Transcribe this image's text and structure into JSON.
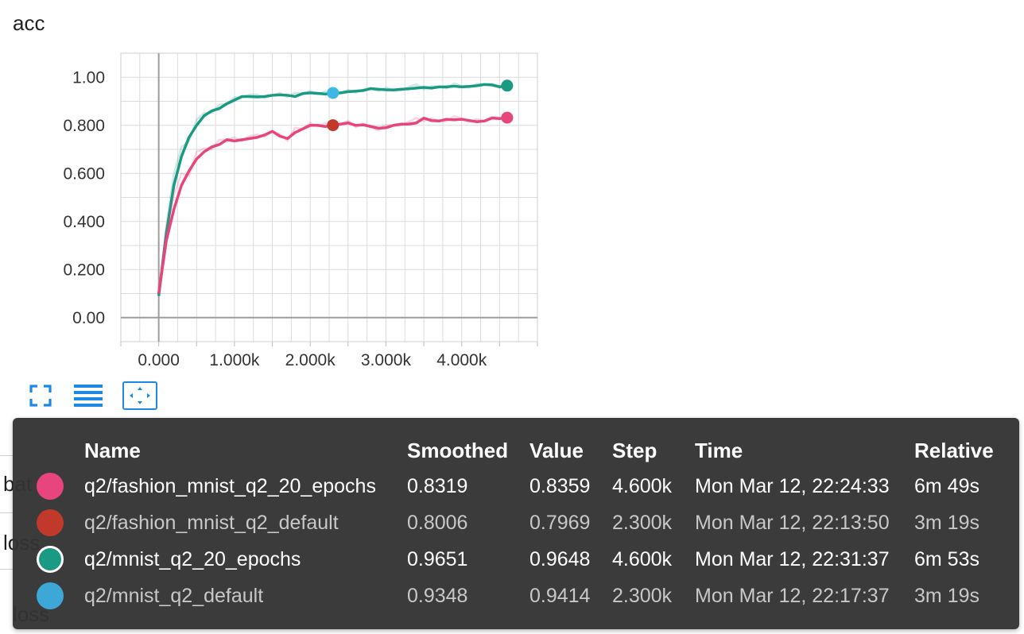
{
  "title": "acc",
  "background_rows": {
    "row1": "bat",
    "row2": "loss",
    "row3": "loss"
  },
  "toolbar": {
    "fullscreen": "fullscreen-icon",
    "list": "list-icon",
    "fit": "fit-domain-icon"
  },
  "chart_data": {
    "type": "line",
    "title": "acc",
    "xlabel": "",
    "ylabel": "",
    "xlim": [
      -500,
      5000
    ],
    "ylim": [
      -0.1,
      1.1
    ],
    "x_ticks": [
      "0.000",
      "1.000k",
      "2.000k",
      "3.000k",
      "4.000k"
    ],
    "y_ticks": [
      "0.00",
      "0.200",
      "0.400",
      "0.600",
      "0.800",
      "1.00"
    ],
    "grid": true,
    "series": [
      {
        "name": "q2/mnist_q2_20_epochs",
        "color": "#1a9a83",
        "x": [
          0,
          100,
          200,
          300,
          400,
          500,
          600,
          700,
          800,
          900,
          1000,
          1100,
          1200,
          1300,
          1400,
          1500,
          1600,
          1700,
          1800,
          1900,
          2000,
          2100,
          2200,
          2300,
          2400,
          2500,
          2600,
          2700,
          2800,
          2900,
          3000,
          3100,
          3200,
          3300,
          3400,
          3500,
          3600,
          3700,
          3800,
          3900,
          4000,
          4100,
          4200,
          4300,
          4400,
          4500,
          4600
        ],
        "values": [
          0.09,
          0.35,
          0.55,
          0.67,
          0.75,
          0.8,
          0.84,
          0.86,
          0.87,
          0.89,
          0.905,
          0.92,
          0.92,
          0.918,
          0.92,
          0.925,
          0.927,
          0.925,
          0.92,
          0.932,
          0.935,
          0.933,
          0.93,
          0.933,
          0.935,
          0.94,
          0.942,
          0.945,
          0.953,
          0.95,
          0.948,
          0.947,
          0.95,
          0.952,
          0.955,
          0.958,
          0.955,
          0.96,
          0.96,
          0.963,
          0.96,
          0.962,
          0.965,
          0.97,
          0.968,
          0.96,
          0.9651
        ],
        "marker_x": 4600,
        "marker_y": 0.9651
      },
      {
        "name": "q2/mnist_q2_default",
        "color": "#3db8e6",
        "marker_x": 2300,
        "marker_y": 0.9348
      },
      {
        "name": "q2/fashion_mnist_q2_20_epochs",
        "color": "#e8447e",
        "x": [
          0,
          100,
          200,
          300,
          400,
          500,
          600,
          700,
          800,
          900,
          1000,
          1100,
          1200,
          1300,
          1400,
          1500,
          1600,
          1700,
          1800,
          1900,
          2000,
          2100,
          2200,
          2300,
          2400,
          2500,
          2600,
          2700,
          2800,
          2900,
          3000,
          3100,
          3200,
          3300,
          3400,
          3500,
          3600,
          3700,
          3800,
          3900,
          4000,
          4100,
          4200,
          4300,
          4400,
          4500,
          4600
        ],
        "values": [
          0.1,
          0.32,
          0.45,
          0.55,
          0.61,
          0.66,
          0.69,
          0.71,
          0.72,
          0.74,
          0.735,
          0.74,
          0.745,
          0.75,
          0.76,
          0.775,
          0.755,
          0.745,
          0.77,
          0.785,
          0.8,
          0.8,
          0.795,
          0.8,
          0.805,
          0.81,
          0.8,
          0.802,
          0.795,
          0.788,
          0.79,
          0.8,
          0.805,
          0.805,
          0.81,
          0.83,
          0.82,
          0.818,
          0.825,
          0.823,
          0.825,
          0.82,
          0.815,
          0.818,
          0.83,
          0.828,
          0.8319
        ],
        "marker_x": 4600,
        "marker_y": 0.8319
      },
      {
        "name": "q2/fashion_mnist_q2_default",
        "color": "#c0392b",
        "marker_x": 2300,
        "marker_y": 0.8006
      }
    ]
  },
  "tooltip": {
    "headers": [
      "Name",
      "Smoothed",
      "Value",
      "Step",
      "Time",
      "Relative"
    ],
    "rows": [
      {
        "name": "q2/fashion_mnist_q2_20_epochs",
        "smoothed": "0.8319",
        "value": "0.8359",
        "step": "4.600k",
        "time": "Mon Mar 12, 22:24:33",
        "relative": "6m 49s",
        "color": "#e8447e",
        "style": "bold",
        "ring": false
      },
      {
        "name": "q2/fashion_mnist_q2_default",
        "smoothed": "0.8006",
        "value": "0.7969",
        "step": "2.300k",
        "time": "Mon Mar 12, 22:13:50",
        "relative": "3m 19s",
        "color": "#c0392b",
        "style": "dim",
        "ring": false
      },
      {
        "name": "q2/mnist_q2_20_epochs",
        "smoothed": "0.9651",
        "value": "0.9648",
        "step": "4.600k",
        "time": "Mon Mar 12, 22:31:37",
        "relative": "6m 53s",
        "color": "#1a9a83",
        "style": "bold",
        "ring": true
      },
      {
        "name": "q2/mnist_q2_default",
        "smoothed": "0.9348",
        "value": "0.9414",
        "step": "2.300k",
        "time": "Mon Mar 12, 22:17:37",
        "relative": "3m 19s",
        "color": "#3da8d8",
        "style": "dim",
        "ring": false
      }
    ]
  }
}
